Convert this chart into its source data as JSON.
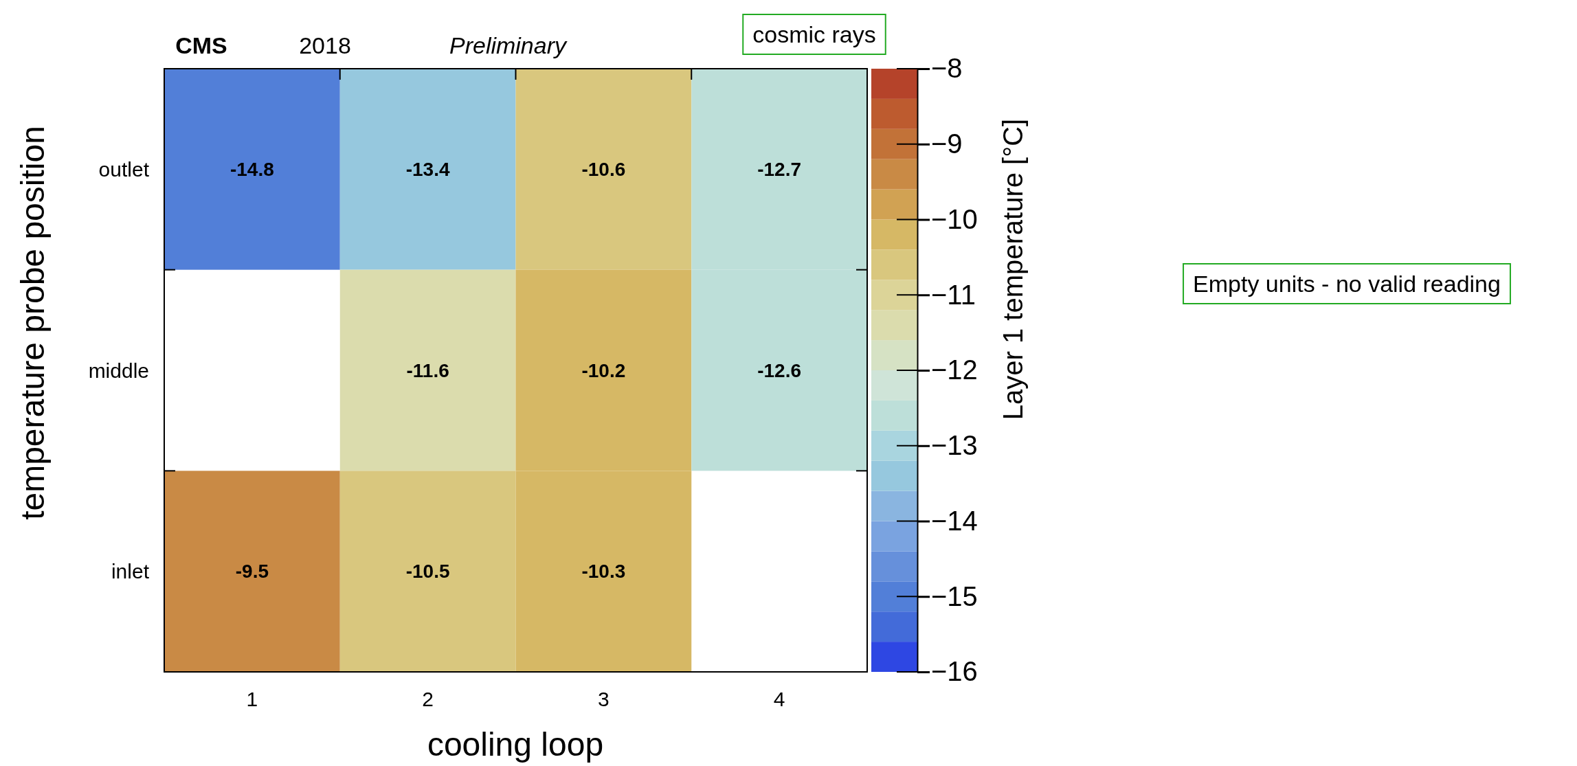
{
  "chart_data": {
    "type": "heatmap",
    "xlabel": "cooling loop",
    "ylabel": "temperature probe position",
    "clabel": "Layer 1  temperature [°C]",
    "categories": [
      "1",
      "2",
      "3",
      "4"
    ],
    "y_categories": [
      "outlet",
      "middle",
      "inlet"
    ],
    "cells": [
      [
        -14.8,
        -13.4,
        -10.6,
        -12.7
      ],
      [
        null,
        -11.6,
        -10.2,
        -12.6
      ],
      [
        -9.5,
        -10.5,
        -10.3,
        null
      ]
    ],
    "data_labels": true,
    "clim": [
      -16,
      -8
    ],
    "cticks": [
      {
        "value": -16,
        "label": "−16"
      },
      {
        "value": -15,
        "label": "−15"
      },
      {
        "value": -14,
        "label": "−14"
      },
      {
        "value": -13,
        "label": "−13"
      },
      {
        "value": -12,
        "label": "−12"
      },
      {
        "value": -11,
        "label": "−11"
      },
      {
        "value": -10,
        "label": "−10"
      },
      {
        "value": -9,
        "label": "−9"
      },
      {
        "value": -8,
        "label": "−8"
      }
    ],
    "colors": [
      "#2e47e3",
      "#436bd9",
      "#527fd8",
      "#6690db",
      "#7aa3e0",
      "#8ab5e0",
      "#96c8de",
      "#a9d5df",
      "#bddfd9",
      "#cfe4d8",
      "#d6e2c4",
      "#dbdcad",
      "#dcd498",
      "#d9c77e",
      "#d6b865",
      "#d1a253",
      "#c98a45",
      "#c27238",
      "#bd5b2f",
      "#b5432a"
    ],
    "annotations": [
      "CMS",
      "2018",
      "Preliminary",
      "cosmic rays",
      "Empty units - no valid reading"
    ]
  }
}
